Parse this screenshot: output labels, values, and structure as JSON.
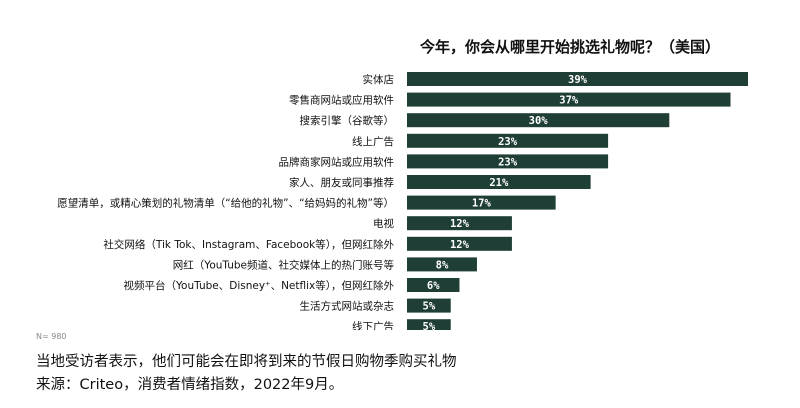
{
  "chart_data": {
    "type": "bar",
    "orientation": "horizontal",
    "title": "今年，你会从哪里开始挑选礼物呢？（美国）",
    "categories": [
      "实体店",
      "零售商网站或应用软件",
      "搜索引擎（谷歌等）",
      "线上广告",
      "品牌商家网站或应用软件",
      "家人、朋友或同事推荐",
      "愿望清单，或精心策划的礼物清单（“给他的礼物”、“给妈妈的礼物”等）",
      "电视",
      "社交网络（Tik Tok、Instagram、Facebook等），但网红除外",
      "网红（YouTube频道、社交媒体上的热门账号等",
      "视频平台（YouTube、Disney⁺、Netflix等），但网红除外",
      "生活方式网站或杂志",
      "线下广告"
    ],
    "values": [
      39,
      37,
      30,
      23,
      23,
      21,
      17,
      12,
      12,
      8,
      6,
      5,
      5
    ],
    "value_labels": [
      "39%",
      "37%",
      "30%",
      "23%",
      "23%",
      "21%",
      "17%",
      "12%",
      "12%",
      "8%",
      "6%",
      "5%",
      "5%"
    ],
    "xlim": [
      0,
      39
    ],
    "grid": false,
    "legend": "none",
    "bar_color": "#1f3e36",
    "label_color": "#ffffff"
  },
  "sample_size": "N= 980",
  "caption_line1": "当地受访者表示，他们可能会在即将到来的节假日购物季购买礼物",
  "caption_line2": "来源：Criteo，消费者情绪指数，2022年9月。"
}
